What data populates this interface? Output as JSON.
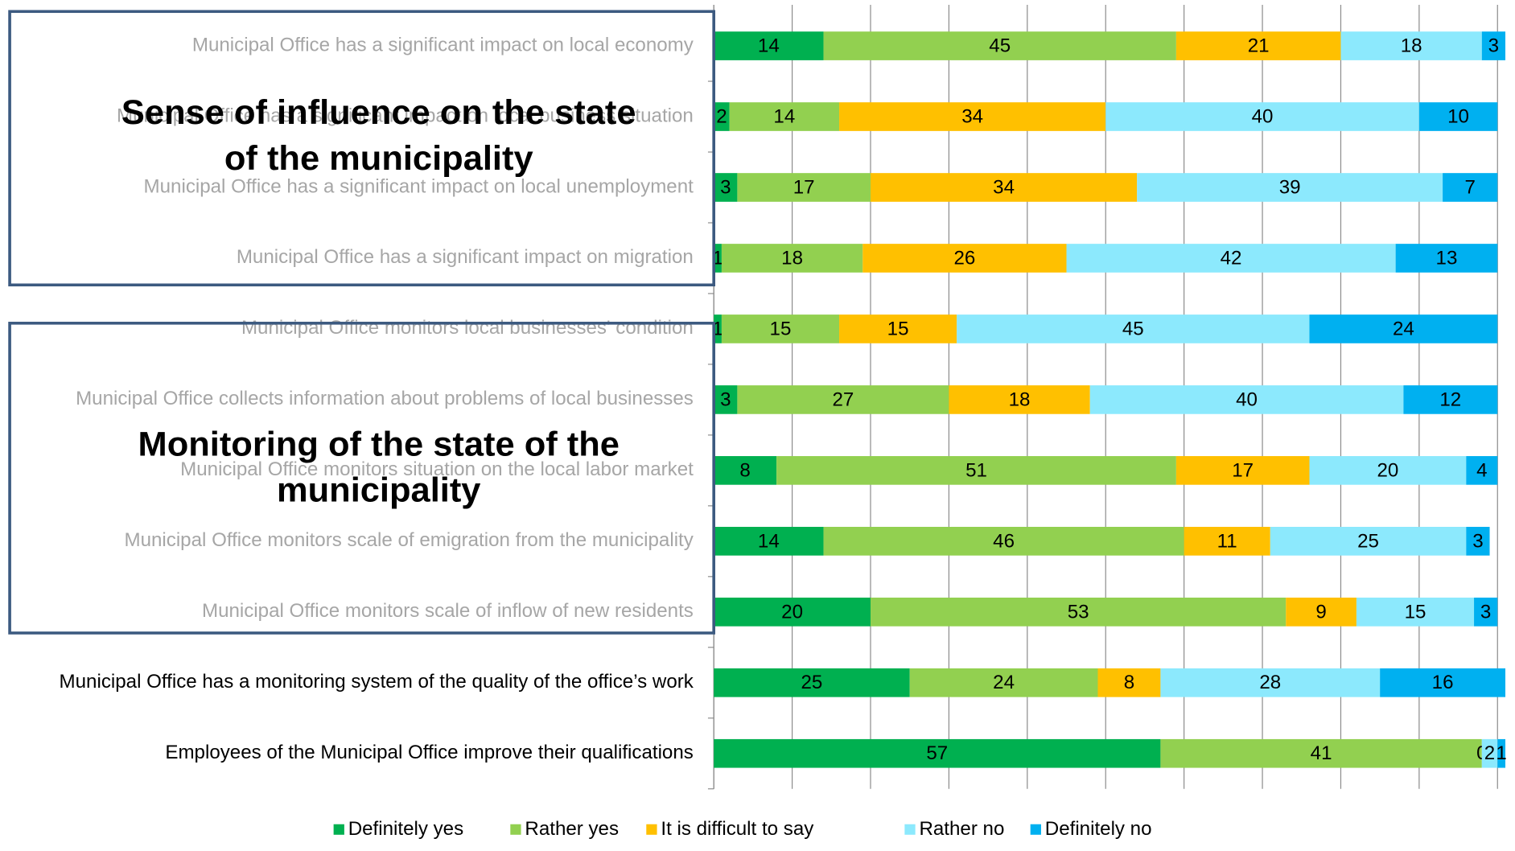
{
  "chart_data": {
    "type": "stacked-bar-horizontal",
    "categories": [
      "Municipal Office has a significant impact on local economy",
      "Municipal Office has a significant impact on local business situation",
      "Municipal Office has a significant impact on local unemployment",
      "Municipal Office has a significant impact on migration",
      "Municipal Office monitors local businesses' condition",
      "Municipal Office collects information about problems of local businesses",
      "Municipal Office monitors situation on the local labor market",
      "Municipal Office monitors scale of emigration from the municipality",
      "Municipal Office monitors scale of inflow of new residents",
      "Municipal Office has a monitoring system of the quality of the office’s work",
      "Employees of the Municipal Office improve their qualifications"
    ],
    "series": [
      {
        "name": "Definitely yes",
        "color": "#00b050",
        "values": [
          14,
          2,
          3,
          1,
          1,
          3,
          8,
          14,
          20,
          25,
          57
        ]
      },
      {
        "name": "Rather yes",
        "color": "#92d050",
        "values": [
          45,
          14,
          17,
          18,
          15,
          27,
          51,
          46,
          53,
          24,
          41
        ]
      },
      {
        "name": "It is difficult to say",
        "color": "#ffc000",
        "values": [
          21,
          34,
          34,
          26,
          15,
          18,
          17,
          11,
          9,
          8,
          0
        ]
      },
      {
        "name": "Rather no",
        "color": "#8ce9fd",
        "values": [
          18,
          40,
          39,
          42,
          45,
          40,
          20,
          25,
          15,
          28,
          2
        ]
      },
      {
        "name": "Definitely no",
        "color": "#00b0f0",
        "values": [
          3,
          10,
          7,
          13,
          24,
          12,
          4,
          3,
          3,
          16,
          1
        ]
      }
    ],
    "xlim": [
      0,
      100
    ],
    "xticks": [
      0,
      10,
      20,
      30,
      40,
      50,
      60,
      70,
      80,
      90,
      100
    ],
    "grid": true,
    "legend": "bottom",
    "annotations": [
      {
        "lines": [
          "Sense of influence on the state",
          "of the municipality"
        ]
      },
      {
        "lines": [
          "Monitoring of the state of the",
          "municipality"
        ]
      }
    ]
  }
}
